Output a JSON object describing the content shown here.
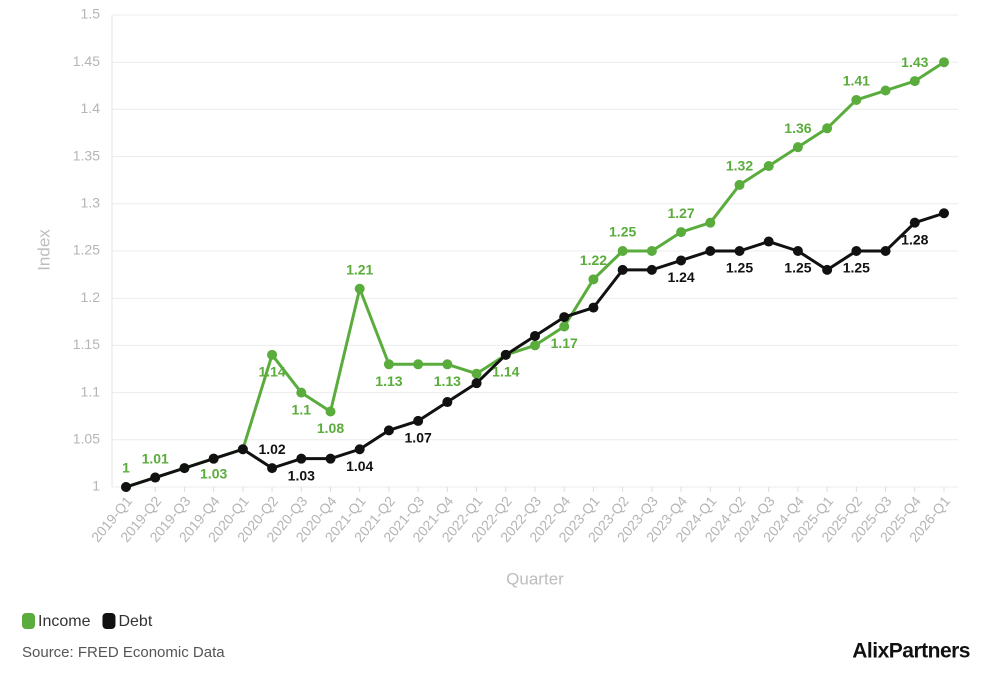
{
  "chart_data": {
    "type": "line",
    "x_label": "Quarter",
    "y_label": "Index",
    "categories": [
      "2019-Q1",
      "2019-Q2",
      "2019-Q3",
      "2019-Q4",
      "2020-Q1",
      "2020-Q2",
      "2020-Q3",
      "2020-Q4",
      "2021-Q1",
      "2021-Q2",
      "2021-Q3",
      "2021-Q4",
      "2022-Q1",
      "2022-Q2",
      "2022-Q3",
      "2022-Q4",
      "2023-Q1",
      "2023-Q2",
      "2023-Q3",
      "2023-Q4",
      "2024-Q1",
      "2024-Q2",
      "2024-Q3",
      "2024-Q4",
      "2025-Q1",
      "2025-Q2",
      "2025-Q3",
      "2025-Q4",
      "2026-Q1"
    ],
    "series": [
      {
        "name": "Income",
        "color": "#5aac3c",
        "values": [
          1.0,
          1.01,
          1.02,
          1.03,
          1.04,
          1.14,
          1.1,
          1.08,
          1.21,
          1.13,
          1.13,
          1.13,
          1.12,
          1.14,
          1.15,
          1.17,
          1.22,
          1.25,
          1.25,
          1.27,
          1.28,
          1.32,
          1.34,
          1.36,
          1.38,
          1.41,
          1.42,
          1.43,
          1.45
        ],
        "value_labels": [
          "1",
          "1.01",
          null,
          "1.03",
          null,
          "1.14",
          "1.1",
          "1.08",
          "1.21",
          "1.13",
          null,
          "1.13",
          null,
          "1.14",
          null,
          "1.17",
          "1.22",
          "1.25",
          null,
          "1.27",
          null,
          "1.32",
          null,
          "1.36",
          null,
          "1.41",
          null,
          "1.43",
          null
        ]
      },
      {
        "name": "Debt",
        "color": "#111111",
        "values": [
          1.0,
          1.01,
          1.02,
          1.03,
          1.04,
          1.02,
          1.03,
          1.03,
          1.04,
          1.06,
          1.07,
          1.09,
          1.11,
          1.14,
          1.16,
          1.18,
          1.19,
          1.23,
          1.23,
          1.24,
          1.25,
          1.25,
          1.26,
          1.25,
          1.23,
          1.25,
          1.25,
          1.28,
          1.29
        ],
        "value_labels": [
          null,
          null,
          null,
          null,
          null,
          "1.02",
          "1.03",
          null,
          "1.04",
          null,
          "1.07",
          null,
          null,
          null,
          null,
          null,
          null,
          null,
          null,
          "1.24",
          null,
          "1.25",
          null,
          "1.25",
          null,
          "1.25",
          null,
          "1.28",
          null
        ]
      }
    ],
    "ylim": [
      1,
      1.5
    ],
    "yticks": [
      1,
      1.05,
      1.1,
      1.15,
      1.2,
      1.25,
      1.3,
      1.35,
      1.4,
      1.45,
      1.5
    ],
    "grid": true,
    "legend": "bottom-left"
  },
  "source": "Source: FRED Economic Data",
  "logo": "AlixPartners"
}
